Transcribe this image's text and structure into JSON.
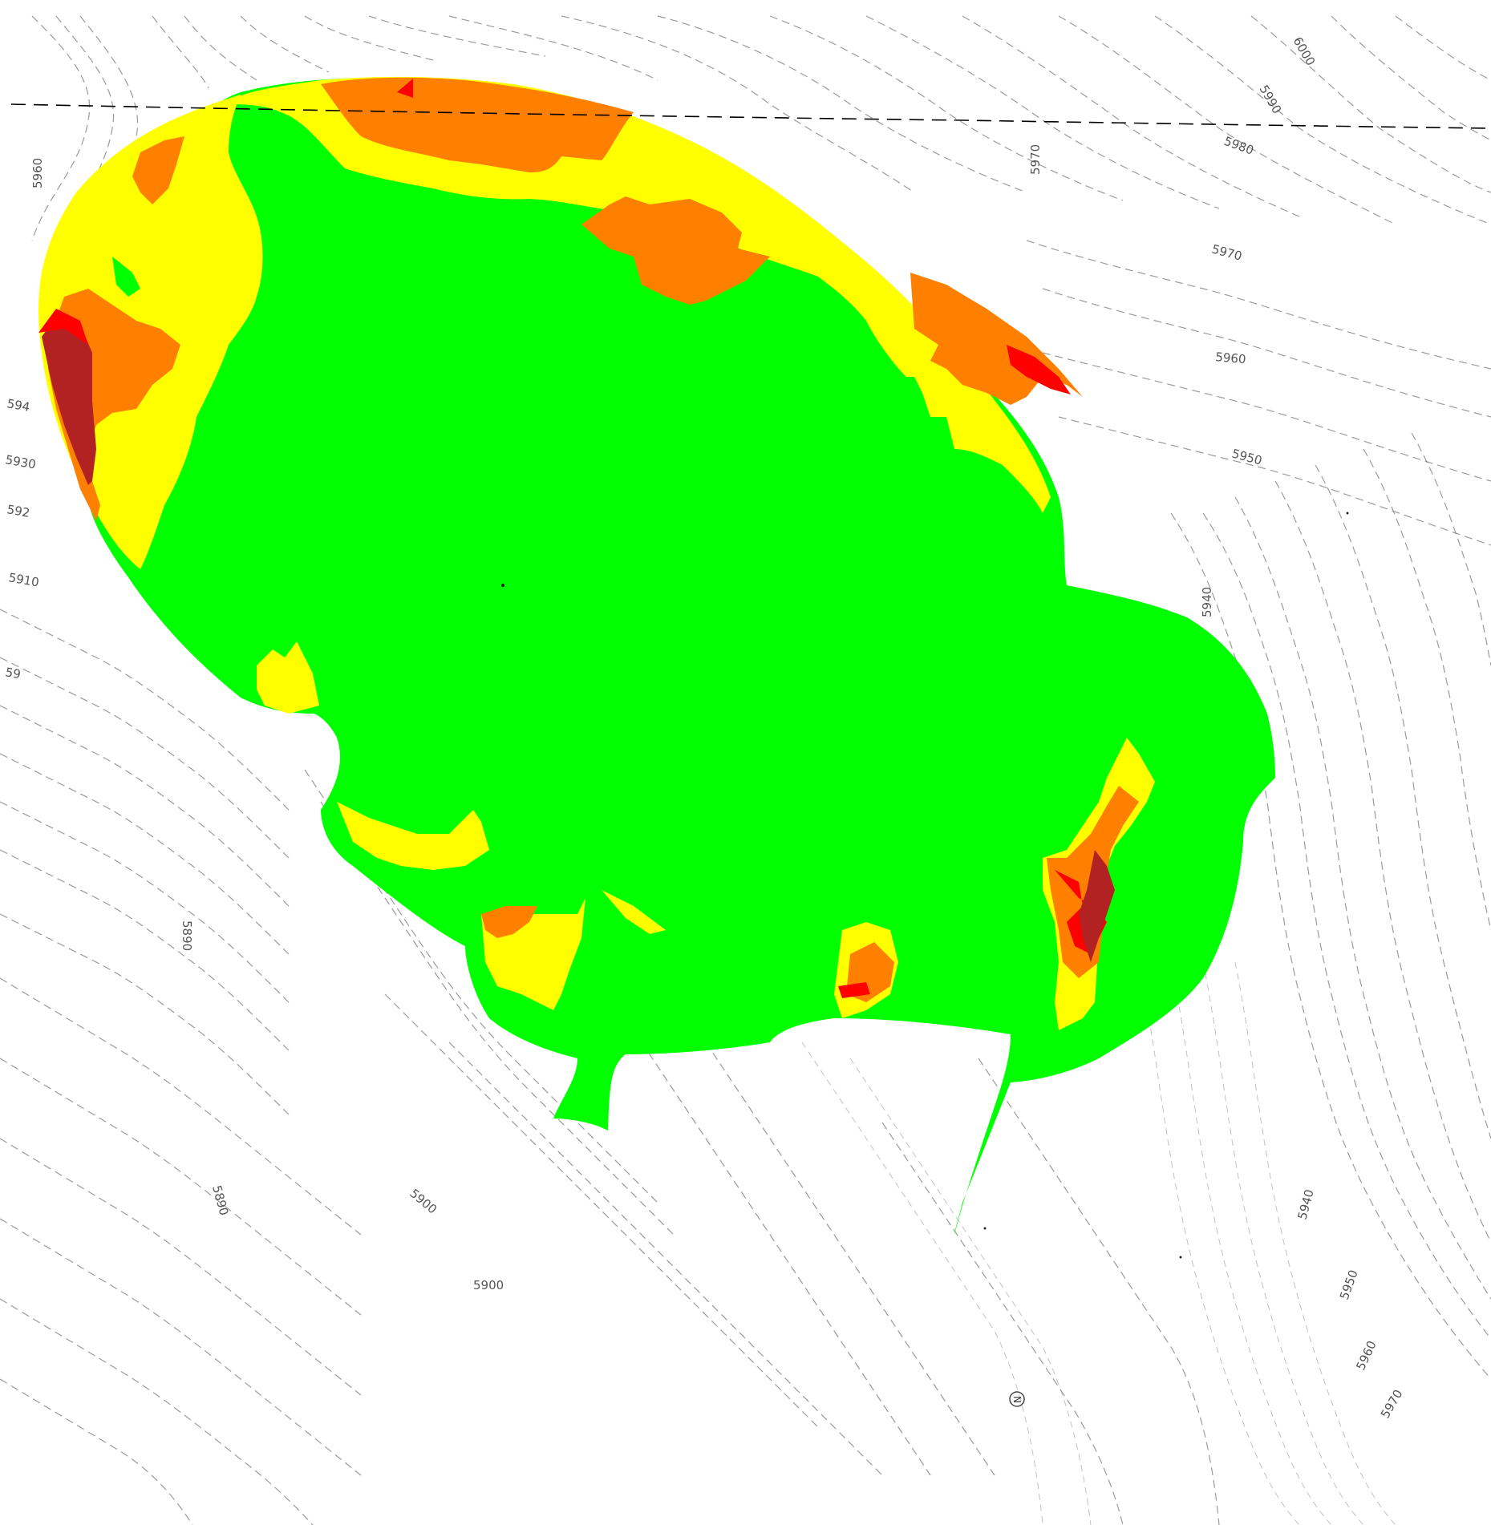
{
  "map": {
    "colors": {
      "background": "#ffffff",
      "contour": "#7a7a7a",
      "zone_green": "#00ff00",
      "zone_yellow": "#ffff00",
      "zone_orange": "#ff8000",
      "zone_red": "#ff0000",
      "zone_darkred": "#b22222",
      "boundary_line": "#000000"
    },
    "contour_labels": [
      {
        "id": "c5960-tl",
        "text": "5960"
      },
      {
        "id": "c6000",
        "text": "6000"
      },
      {
        "id": "c5990",
        "text": "5990"
      },
      {
        "id": "c5980",
        "text": "5980"
      },
      {
        "id": "c5970-top",
        "text": "5970"
      },
      {
        "id": "c5970-r",
        "text": "5970"
      },
      {
        "id": "c5960-r",
        "text": "5960"
      },
      {
        "id": "c5950-r",
        "text": "5950"
      },
      {
        "id": "c594-l",
        "text": "594"
      },
      {
        "id": "c5930-l",
        "text": "5930"
      },
      {
        "id": "c592-l",
        "text": "592"
      },
      {
        "id": "c5910-l",
        "text": "5910"
      },
      {
        "id": "c59-l",
        "text": "59"
      },
      {
        "id": "c5940-r",
        "text": "5940"
      },
      {
        "id": "c5890",
        "text": "5890"
      },
      {
        "id": "c5890-b",
        "text": "5890"
      },
      {
        "id": "c5900-b",
        "text": "5900"
      },
      {
        "id": "c5900-bb",
        "text": "5900"
      },
      {
        "id": "c5940-br",
        "text": "5940"
      },
      {
        "id": "c5950-br",
        "text": "5950"
      },
      {
        "id": "c5960-br",
        "text": "5960"
      },
      {
        "id": "c5970-br",
        "text": "5970"
      }
    ],
    "north_marker": "N"
  }
}
